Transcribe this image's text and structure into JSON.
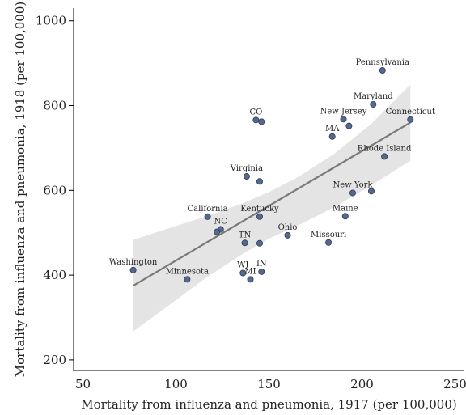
{
  "chart_data": {
    "type": "scatter",
    "xlabel": "Mortality from influenza and pneumonia, 1917 (per 100,000)",
    "ylabel": "Mortality from influenza and pneumonia, 1918 (per 100,000)",
    "xlim": [
      45,
      255
    ],
    "ylim": [
      175,
      1030
    ],
    "x_ticks": [
      50,
      100,
      150,
      200,
      250
    ],
    "y_ticks": [
      200,
      400,
      600,
      800,
      1000
    ],
    "grid": false,
    "legend": "none",
    "colors": {
      "point_fill": "#56688f",
      "point_stroke": "#2e3a55",
      "fit_line": "#7a7a7a",
      "ci_band": "#e4e4e4",
      "axis": "#000000"
    },
    "points": [
      {
        "label": "Pennsylvania",
        "x": 211,
        "y": 883
      },
      {
        "label": "Maryland",
        "x": 206,
        "y": 803
      },
      {
        "label": "New Jersey",
        "x": 190,
        "y": 768
      },
      {
        "label": "",
        "x": 193,
        "y": 752
      },
      {
        "label": "Connecticut",
        "x": 226,
        "y": 767
      },
      {
        "label": "MA",
        "x": 184,
        "y": 727
      },
      {
        "label": "CO",
        "x": 143,
        "y": 766
      },
      {
        "label": "",
        "x": 146,
        "y": 762
      },
      {
        "label": "Rhode Island",
        "x": 212,
        "y": 680
      },
      {
        "label": "Virginia",
        "x": 138,
        "y": 633
      },
      {
        "label": "",
        "x": 145,
        "y": 621
      },
      {
        "label": "New York",
        "x": 195,
        "y": 594
      },
      {
        "label": "",
        "x": 205,
        "y": 598
      },
      {
        "label": "California",
        "x": 117,
        "y": 538
      },
      {
        "label": "Kentucky",
        "x": 145,
        "y": 538
      },
      {
        "label": "Maine",
        "x": 191,
        "y": 539
      },
      {
        "label": "NC",
        "x": 124,
        "y": 508
      },
      {
        "label": "",
        "x": 122,
        "y": 502
      },
      {
        "label": "Ohio",
        "x": 160,
        "y": 494
      },
      {
        "label": "TN",
        "x": 137,
        "y": 476
      },
      {
        "label": "",
        "x": 145,
        "y": 475
      },
      {
        "label": "Missouri",
        "x": 182,
        "y": 477
      },
      {
        "label": "Washington",
        "x": 77,
        "y": 412
      },
      {
        "label": "Minnesota",
        "x": 106,
        "y": 390
      },
      {
        "label": "WI",
        "x": 136,
        "y": 405
      },
      {
        "label": "MI",
        "x": 140,
        "y": 390
      },
      {
        "label": "IN",
        "x": 146,
        "y": 408
      }
    ],
    "fit_line": {
      "x": [
        77,
        226
      ],
      "y": [
        375,
        760
      ]
    },
    "ci_band": {
      "x": [
        77,
        95,
        115,
        135,
        150,
        165,
        185,
        205,
        226
      ],
      "upper": [
        483,
        509,
        537,
        568,
        596,
        630,
        686,
        757,
        850
      ],
      "lower": [
        267,
        325,
        390,
        448,
        486,
        516,
        560,
        612,
        670
      ]
    }
  }
}
